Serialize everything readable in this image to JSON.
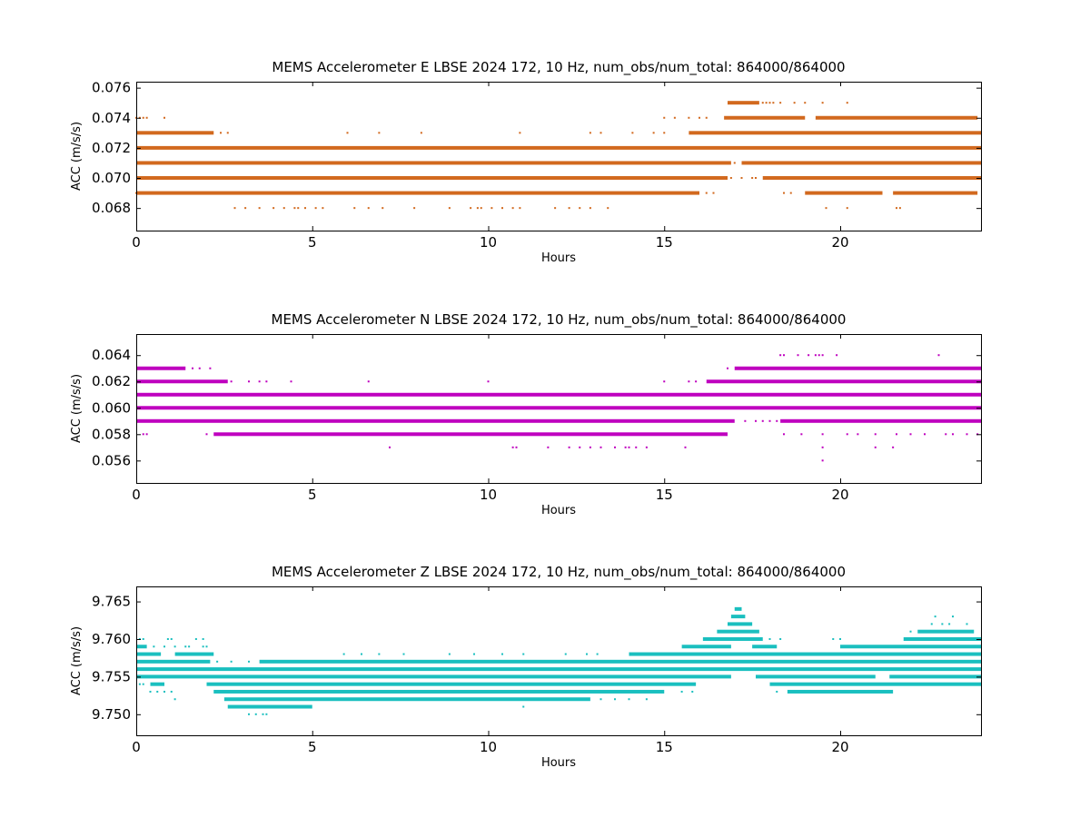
{
  "chart_data": [
    {
      "type": "scatter",
      "title": "MEMS Accelerometer E LBSE 2024 172, 10 Hz, num_obs/num_total: 864000/864000",
      "xlabel": "Hours",
      "ylabel": "ACC (m/s/s)",
      "xlim": [
        0,
        24
      ],
      "ylim": [
        0.0665,
        0.0764
      ],
      "xticks": [
        0,
        5,
        10,
        15,
        20
      ],
      "yticks": [
        0.068,
        0.07,
        0.072,
        0.074,
        0.076
      ],
      "ytick_labels": [
        "0.068",
        "0.070",
        "0.072",
        "0.074",
        "0.076"
      ],
      "color": "#d2691e",
      "grid": false,
      "series": [
        {
          "level": 0.075,
          "segments": [
            [
              16.8,
              17.7
            ]
          ],
          "x": [
            17.8,
            17.9,
            18.0,
            18.1,
            18.3,
            18.7,
            19.0,
            19.5,
            20.2
          ]
        },
        {
          "level": 0.074,
          "segments": [
            [
              16.7,
              19.0
            ],
            [
              19.3,
              23.9
            ]
          ],
          "x": [
            0.0,
            0.1,
            0.2,
            0.3,
            0.8,
            15.0,
            15.3,
            15.7,
            16.0,
            16.2
          ]
        },
        {
          "level": 0.073,
          "segments": [
            [
              0.0,
              2.2
            ],
            [
              15.7,
              24.0
            ]
          ],
          "x": [
            2.4,
            2.6,
            6.0,
            6.9,
            8.1,
            10.9,
            12.9,
            13.2,
            14.1,
            14.7,
            15.0
          ]
        },
        {
          "level": 0.072,
          "segments": [
            [
              0.0,
              24.0
            ]
          ],
          "x": []
        },
        {
          "level": 0.071,
          "segments": [
            [
              0.0,
              16.9
            ],
            [
              17.2,
              24.0
            ]
          ],
          "x": [
            17.0
          ]
        },
        {
          "level": 0.07,
          "segments": [
            [
              0.0,
              16.8
            ],
            [
              17.8,
              24.0
            ]
          ],
          "x": [
            17.2,
            17.5,
            17.6,
            16.9
          ]
        },
        {
          "level": 0.069,
          "segments": [
            [
              0.0,
              16.0
            ],
            [
              19.0,
              21.2
            ],
            [
              21.5,
              23.9
            ]
          ],
          "x": [
            0.0,
            0.1,
            16.2,
            16.4,
            18.4,
            18.6
          ]
        },
        {
          "level": 0.068,
          "segments": [],
          "x": [
            2.8,
            3.1,
            3.5,
            3.9,
            4.2,
            4.5,
            4.6,
            4.8,
            5.1,
            5.3,
            6.2,
            6.6,
            7.0,
            7.9,
            8.9,
            9.5,
            9.7,
            9.8,
            10.1,
            10.4,
            10.7,
            10.9,
            11.9,
            12.3,
            12.6,
            12.9,
            13.4,
            19.6,
            20.2,
            21.6,
            21.7
          ]
        }
      ]
    },
    {
      "type": "scatter",
      "title": "MEMS Accelerometer N LBSE 2024 172, 10 Hz, num_obs/num_total: 864000/864000",
      "xlabel": "Hours",
      "ylabel": "ACC (m/s/s)",
      "xlim": [
        0,
        24
      ],
      "ylim": [
        0.0543,
        0.0656
      ],
      "xticks": [
        0,
        5,
        10,
        15,
        20
      ],
      "yticks": [
        0.056,
        0.058,
        0.06,
        0.062,
        0.064
      ],
      "ytick_labels": [
        "0.056",
        "0.058",
        "0.060",
        "0.062",
        "0.064"
      ],
      "color": "#bf00bf",
      "grid": false,
      "series": [
        {
          "level": 0.064,
          "segments": [],
          "x": [
            18.3,
            18.4,
            18.8,
            19.1,
            19.3,
            19.4,
            19.5,
            19.9,
            22.8
          ]
        },
        {
          "level": 0.063,
          "segments": [
            [
              0.0,
              1.4
            ],
            [
              17.0,
              24.0
            ]
          ],
          "x": [
            1.6,
            1.8,
            2.1,
            16.8
          ]
        },
        {
          "level": 0.062,
          "segments": [
            [
              0.0,
              2.6
            ],
            [
              16.2,
              24.0
            ]
          ],
          "x": [
            2.7,
            3.2,
            3.5,
            3.7,
            4.4,
            6.6,
            10.0,
            15.0,
            15.7,
            15.9
          ]
        },
        {
          "level": 0.061,
          "segments": [
            [
              0.0,
              24.0
            ]
          ],
          "x": []
        },
        {
          "level": 0.06,
          "segments": [
            [
              0.0,
              24.0
            ]
          ],
          "x": []
        },
        {
          "level": 0.059,
          "segments": [
            [
              0.0,
              17.0
            ],
            [
              18.3,
              24.0
            ]
          ],
          "x": [
            17.3,
            17.6,
            17.8,
            18.0,
            18.2,
            19.2,
            19.6,
            20.3
          ]
        },
        {
          "level": 0.058,
          "segments": [
            [
              2.2,
              16.8
            ]
          ],
          "x": [
            0.2,
            0.3,
            2.0,
            18.4,
            18.9,
            19.5,
            20.2,
            20.5,
            21.0,
            21.6,
            22.0,
            22.4,
            23.0,
            23.2,
            23.6,
            23.9
          ]
        },
        {
          "level": 0.057,
          "segments": [],
          "x": [
            7.2,
            10.7,
            10.8,
            11.7,
            12.3,
            12.6,
            12.9,
            13.2,
            13.6,
            13.9,
            14.0,
            14.2,
            14.5,
            15.6,
            19.5,
            21.0,
            21.5
          ]
        },
        {
          "level": 0.056,
          "segments": [],
          "x": [
            19.5
          ]
        }
      ]
    },
    {
      "type": "scatter",
      "title": "MEMS Accelerometer Z LBSE 2024 172, 10 Hz, num_obs/num_total: 864000/864000",
      "xlabel": "Hours",
      "ylabel": "ACC (m/s/s)",
      "xlim": [
        0,
        24
      ],
      "ylim": [
        9.7472,
        9.767
      ],
      "xticks": [
        0,
        5,
        10,
        15,
        20
      ],
      "yticks": [
        9.75,
        9.755,
        9.76,
        9.765
      ],
      "ytick_labels": [
        "9.750",
        "9.755",
        "9.760",
        "9.765"
      ],
      "color": "#1abfbf",
      "grid": false,
      "series": [
        {
          "level": 9.764,
          "segments": [
            [
              17.0,
              17.2
            ]
          ],
          "x": []
        },
        {
          "level": 9.763,
          "segments": [
            [
              16.9,
              17.3
            ]
          ],
          "x": [
            22.7,
            23.2
          ]
        },
        {
          "level": 9.762,
          "segments": [
            [
              16.8,
              17.5
            ]
          ],
          "x": [
            22.6,
            22.9,
            23.1,
            23.6
          ]
        },
        {
          "level": 9.761,
          "segments": [
            [
              16.5,
              17.7
            ],
            [
              22.2,
              23.8
            ]
          ],
          "x": [
            22.0
          ]
        },
        {
          "level": 9.76,
          "segments": [
            [
              16.1,
              17.8
            ],
            [
              21.8,
              24.0
            ]
          ],
          "x": [
            0.1,
            0.2,
            0.9,
            1.0,
            1.7,
            1.9,
            18.0,
            18.3,
            19.8,
            20.0
          ]
        },
        {
          "level": 9.759,
          "segments": [
            [
              0.0,
              0.3
            ],
            [
              15.5,
              16.9
            ],
            [
              17.5,
              18.2
            ],
            [
              20.0,
              24.0
            ]
          ],
          "x": [
            0.5,
            0.8,
            1.1,
            1.4,
            1.5,
            1.9,
            2.0
          ]
        },
        {
          "level": 9.758,
          "segments": [
            [
              0.0,
              0.7
            ],
            [
              1.1,
              2.2
            ],
            [
              14.0,
              24.0
            ]
          ],
          "x": [
            5.9,
            6.4,
            6.9,
            7.6,
            8.9,
            9.6,
            10.4,
            11.0,
            12.2,
            12.8,
            13.1
          ]
        },
        {
          "level": 9.757,
          "segments": [
            [
              0.0,
              2.1
            ],
            [
              3.5,
              24.0
            ]
          ],
          "x": [
            2.3,
            2.7,
            3.2
          ]
        },
        {
          "level": 9.756,
          "segments": [
            [
              0.0,
              24.0
            ]
          ],
          "x": []
        },
        {
          "level": 9.755,
          "segments": [
            [
              0.0,
              16.9
            ],
            [
              17.6,
              21.0
            ],
            [
              21.4,
              24.0
            ]
          ],
          "x": []
        },
        {
          "level": 9.754,
          "segments": [
            [
              0.4,
              0.8
            ],
            [
              2.0,
              15.9
            ],
            [
              18.0,
              24.0
            ]
          ],
          "x": [
            0.1,
            0.2
          ]
        },
        {
          "level": 9.753,
          "segments": [
            [
              2.2,
              15.0
            ],
            [
              18.5,
              21.5
            ]
          ],
          "x": [
            0.4,
            0.6,
            0.8,
            1.0,
            15.5,
            15.8,
            18.2
          ]
        },
        {
          "level": 9.752,
          "segments": [
            [
              2.5,
              12.9
            ]
          ],
          "x": [
            1.1,
            13.2,
            13.6,
            14.0,
            14.5
          ]
        },
        {
          "level": 9.751,
          "segments": [
            [
              2.6,
              5.0
            ]
          ],
          "x": [
            11.0
          ]
        },
        {
          "level": 9.75,
          "segments": [],
          "x": [
            3.2,
            3.4,
            3.6,
            3.7
          ]
        }
      ]
    }
  ]
}
